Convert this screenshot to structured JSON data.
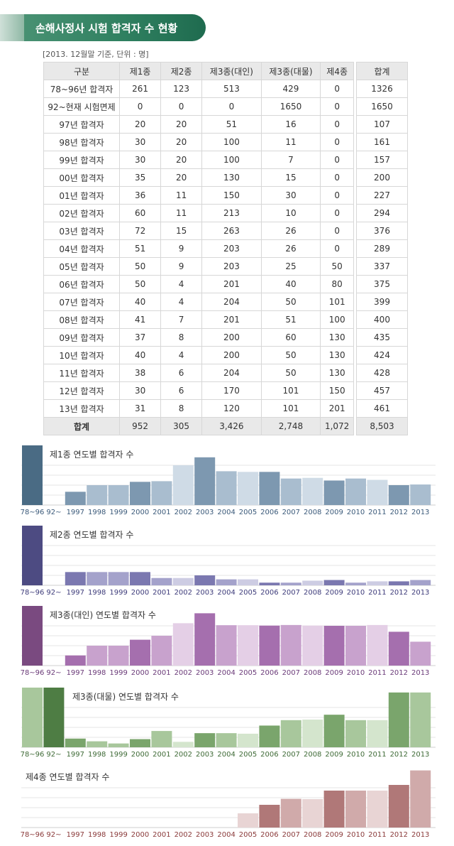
{
  "header": {
    "title": "손해사정사 시험 합격자 수 현황",
    "caption": "[2013. 12월말 기준, 단위 : 명]"
  },
  "table": {
    "columns": [
      "구분",
      "제1종",
      "제2종",
      "제3종(대인)",
      "제3종(대물)",
      "제4종"
    ],
    "sum_column": "합계",
    "rows": [
      {
        "label": "78~96년 합격자",
        "values": [
          "261",
          "123",
          "513",
          "429",
          "0"
        ],
        "sum": "1326"
      },
      {
        "label": "92~현재 시험면제",
        "values": [
          "0",
          "0",
          "0",
          "1650",
          "0"
        ],
        "sum": "1650"
      },
      {
        "label": "97년 합격자",
        "values": [
          "20",
          "20",
          "51",
          "16",
          "0"
        ],
        "sum": "107"
      },
      {
        "label": "98년 합격자",
        "values": [
          "30",
          "20",
          "100",
          "11",
          "0"
        ],
        "sum": "161"
      },
      {
        "label": "99년 합격자",
        "values": [
          "30",
          "20",
          "100",
          "7",
          "0"
        ],
        "sum": "157"
      },
      {
        "label": "00년 합격자",
        "values": [
          "35",
          "20",
          "130",
          "15",
          "0"
        ],
        "sum": "200"
      },
      {
        "label": "01년 합격자",
        "values": [
          "36",
          "11",
          "150",
          "30",
          "0"
        ],
        "sum": "227"
      },
      {
        "label": "02년 합격자",
        "values": [
          "60",
          "11",
          "213",
          "10",
          "0"
        ],
        "sum": "294"
      },
      {
        "label": "03년 합격자",
        "values": [
          "72",
          "15",
          "263",
          "26",
          "0"
        ],
        "sum": "376"
      },
      {
        "label": "04년 합격자",
        "values": [
          "51",
          "9",
          "203",
          "26",
          "0"
        ],
        "sum": "289"
      },
      {
        "label": "05년 합격자",
        "values": [
          "50",
          "9",
          "203",
          "25",
          "50"
        ],
        "sum": "337"
      },
      {
        "label": "06년 합격자",
        "values": [
          "50",
          "4",
          "201",
          "40",
          "80"
        ],
        "sum": "375"
      },
      {
        "label": "07년 합격자",
        "values": [
          "40",
          "4",
          "204",
          "50",
          "101"
        ],
        "sum": "399"
      },
      {
        "label": "08년 합격자",
        "values": [
          "41",
          "7",
          "201",
          "51",
          "100"
        ],
        "sum": "400"
      },
      {
        "label": "09년 합격자",
        "values": [
          "37",
          "8",
          "200",
          "60",
          "130"
        ],
        "sum": "435"
      },
      {
        "label": "10년 합격자",
        "values": [
          "40",
          "4",
          "200",
          "50",
          "130"
        ],
        "sum": "424"
      },
      {
        "label": "11년 합격자",
        "values": [
          "38",
          "6",
          "204",
          "50",
          "130"
        ],
        "sum": "428"
      },
      {
        "label": "12년 합격자",
        "values": [
          "30",
          "6",
          "170",
          "101",
          "150"
        ],
        "sum": "457"
      },
      {
        "label": "13년 합격자",
        "values": [
          "31",
          "8",
          "120",
          "101",
          "201"
        ],
        "sum": "461"
      }
    ],
    "total": {
      "label": "합계",
      "values": [
        "952",
        "305",
        "3,426",
        "2,748",
        "1,072"
      ],
      "sum": "8,503"
    }
  },
  "chart_data": [
    {
      "type": "bar",
      "title": "제1종 연도별 합격자 수",
      "categories": [
        "78~96",
        "92~",
        "1997",
        "1998",
        "1999",
        "2000",
        "2001",
        "2002",
        "2003",
        "2004",
        "2005",
        "2006",
        "2007",
        "2008",
        "2009",
        "2010",
        "2011",
        "2012",
        "2013"
      ],
      "values": [
        261,
        0,
        20,
        30,
        30,
        35,
        36,
        60,
        72,
        51,
        50,
        50,
        40,
        41,
        37,
        40,
        38,
        30,
        31
      ],
      "colors": {
        "dark": "#4a6b84",
        "mid": "#7d98b0",
        "light": "#a9bdcf",
        "pale": "#cfdbe6",
        "label": "#3b5a7a"
      }
    },
    {
      "type": "bar",
      "title": "제2종 연도별 합격자 수",
      "categories": [
        "78~96",
        "92~",
        "1997",
        "1998",
        "1999",
        "2000",
        "2001",
        "2002",
        "2003",
        "2004",
        "2005",
        "2006",
        "2007",
        "2008",
        "2009",
        "2010",
        "2011",
        "2012",
        "2013"
      ],
      "values": [
        123,
        0,
        20,
        20,
        20,
        20,
        11,
        11,
        15,
        9,
        9,
        4,
        4,
        7,
        8,
        4,
        6,
        6,
        8
      ],
      "colors": {
        "dark": "#4d4b82",
        "mid": "#7b78b0",
        "light": "#a4a2cb",
        "pale": "#cdcce3",
        "label": "#3d3b7a"
      }
    },
    {
      "type": "bar",
      "title": "제3종(대인) 연도별 합격자 수",
      "categories": [
        "78~96",
        "92~",
        "1997",
        "1998",
        "1999",
        "2000",
        "2001",
        "2002",
        "2003",
        "2004",
        "2005",
        "2006",
        "2007",
        "2008",
        "2009",
        "2010",
        "2011",
        "2012",
        "2013"
      ],
      "values": [
        513,
        0,
        51,
        100,
        100,
        130,
        150,
        213,
        263,
        203,
        203,
        201,
        204,
        201,
        200,
        200,
        204,
        170,
        120
      ],
      "colors": {
        "dark": "#7a4a80",
        "mid": "#a56fae",
        "light": "#c8a2cd",
        "pale": "#e4cfe6",
        "label": "#6a3a78"
      }
    },
    {
      "type": "bar",
      "title": "제3종(대물) 연도별 합격자 수",
      "categories": [
        "78~96",
        "92~",
        "1997",
        "1998",
        "1999",
        "2000",
        "2001",
        "2002",
        "2003",
        "2004",
        "2005",
        "2006",
        "2007",
        "2008",
        "2009",
        "2010",
        "2011",
        "2012",
        "2013"
      ],
      "values": [
        429,
        1650,
        16,
        11,
        7,
        15,
        30,
        10,
        26,
        26,
        25,
        40,
        50,
        51,
        60,
        50,
        50,
        101,
        101
      ],
      "colors": {
        "dark": "#4e7d44",
        "mid": "#7aa56c",
        "light": "#a8c79c",
        "pale": "#d4e5cd",
        "label": "#3e6a36"
      }
    },
    {
      "type": "bar",
      "title": "제4종 연도별 합격자 수",
      "categories": [
        "78~96",
        "92~",
        "1997",
        "1998",
        "1999",
        "2000",
        "2001",
        "2002",
        "2003",
        "2004",
        "2005",
        "2006",
        "2007",
        "2008",
        "2009",
        "2010",
        "2011",
        "2012",
        "2013"
      ],
      "values": [
        0,
        0,
        0,
        0,
        0,
        0,
        0,
        0,
        0,
        0,
        50,
        80,
        101,
        100,
        130,
        130,
        130,
        150,
        201
      ],
      "colors": {
        "dark": "#9b5e5e",
        "mid": "#b07878",
        "light": "#d0aaaa",
        "pale": "#e8d4d4",
        "label": "#8a3a3a"
      }
    }
  ]
}
